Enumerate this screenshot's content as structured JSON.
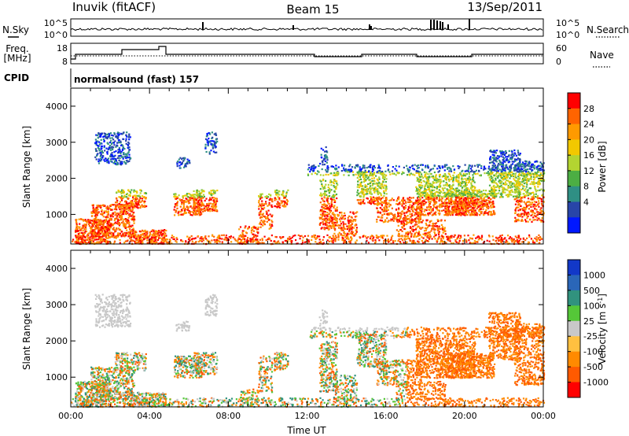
{
  "header": {
    "station": "Inuvik (fitACF)",
    "beam": "Beam 15",
    "date": "13/Sep/2011"
  },
  "top_panels": {
    "nsky_label": "N.Sky",
    "nsearch_label": "N.Search",
    "noise_ticks_left": [
      "10^5",
      "10^0"
    ],
    "noise_ticks_right": [
      "10^5",
      "10^0"
    ],
    "freq_label": "Freq.",
    "freq_unit": "[MHz]",
    "freq_ticks": [
      "18",
      "8"
    ],
    "nave_label": "Nave",
    "nave_ticks": [
      "60",
      "0"
    ],
    "cpid_label": "CPID",
    "cpid_value": "normalsound (fast) 157"
  },
  "chart_data": [
    {
      "type": "heatmap",
      "name": "power-panel",
      "ylabel": "Slant Range [km]",
      "xlabel": "",
      "x_range_hours": [
        0,
        24
      ],
      "ylim": [
        180,
        4500
      ],
      "y_ticks": [
        1000,
        2000,
        3000,
        4000
      ],
      "colorbar_label": "Power [dB]",
      "colorbar_ticks": [
        "28",
        "24",
        "20",
        "16",
        "12",
        "8",
        "4"
      ],
      "colorbar_colors": [
        "#ff0000",
        "#ff6400",
        "#ff9a00",
        "#f2c800",
        "#b3d431",
        "#4cae43",
        "#2f8f84",
        "#2845a8",
        "#0018ff"
      ],
      "grid": false
    },
    {
      "type": "heatmap",
      "name": "velocity-panel",
      "ylabel": "Slant Range [km]",
      "xlabel": "Time UT",
      "x_range_hours": [
        0,
        24
      ],
      "x_ticks": [
        "00:00",
        "04:00",
        "08:00",
        "12:00",
        "16:00",
        "20:00",
        "00:00"
      ],
      "ylim": [
        180,
        4500
      ],
      "y_ticks": [
        1000,
        2000,
        3000,
        4000
      ],
      "colorbar_label": "Velocity [m s",
      "colorbar_unit_exp": "-1",
      "colorbar_ticks": [
        "1000",
        "500",
        "100",
        "25",
        "-25",
        "-100",
        "-500",
        "-1000"
      ],
      "colorbar_colors": [
        "#1238c8",
        "#2a66b8",
        "#31927e",
        "#55c738",
        "#c8c8c8",
        "#ffc040",
        "#ff8a00",
        "#ff5a00",
        "#ff0000"
      ],
      "grid": false
    }
  ]
}
